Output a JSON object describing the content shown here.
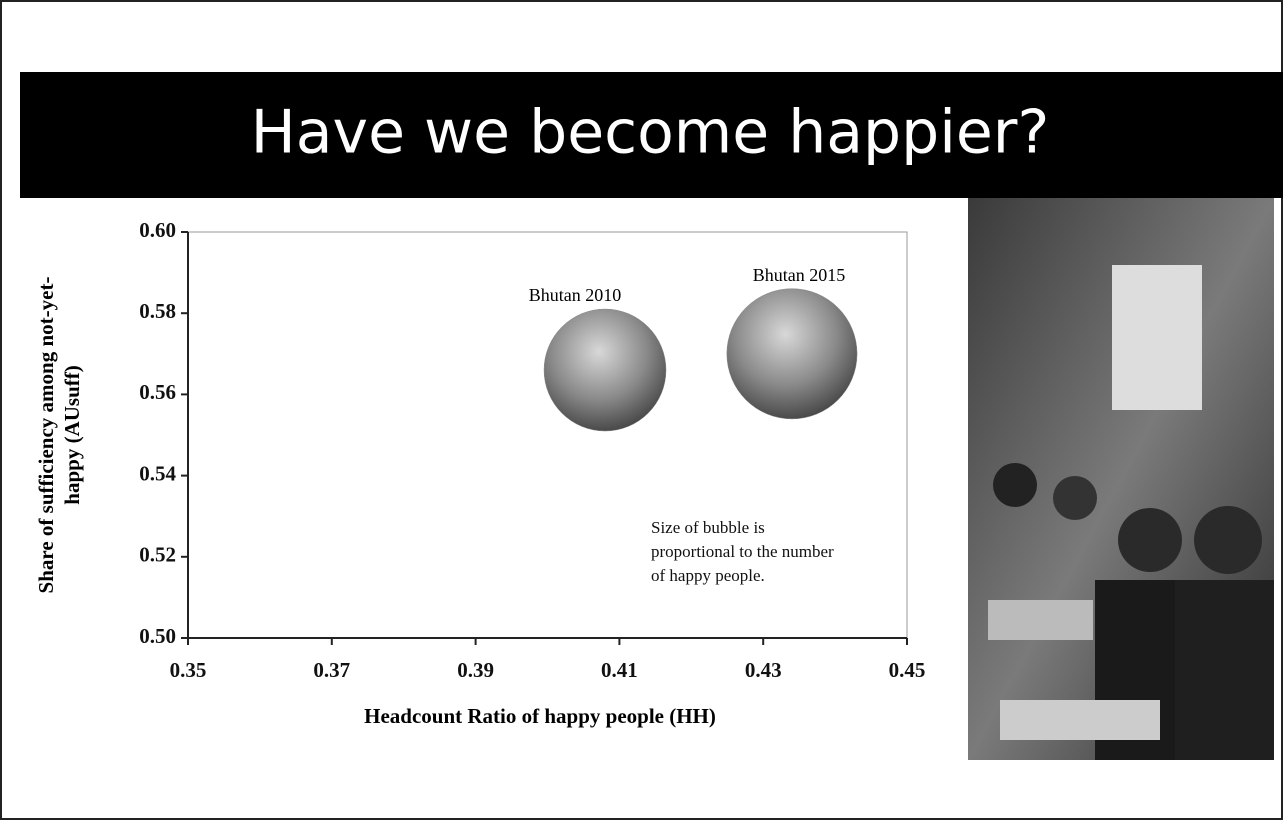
{
  "chart_data": {
    "type": "bubble",
    "title": "Have we become happier?",
    "xlabel": "Headcount Ratio of happy people (HH)",
    "ylabel": [
      "Share of sufficiency among not-yet-",
      "happy (AUsuff)"
    ],
    "series": [
      {
        "labels": [
          "Bhutan 2010",
          "Bhutan 2015"
        ],
        "x": [
          0.408,
          0.434
        ],
        "y": [
          0.566,
          0.57
        ],
        "sizes": [
          100,
          114
        ],
        "color": "#8a8a8a"
      }
    ],
    "annotation": "Size of bubble is proportional to the number of happy people.",
    "xlim": [
      0.35,
      0.45
    ],
    "ylim": [
      0.5,
      0.6
    ],
    "xticks": [
      0.35,
      0.37,
      0.39,
      0.41,
      0.43,
      0.45
    ],
    "yticks": [
      {
        "value": 0.5,
        "label": "0.50"
      },
      0.52,
      0.54,
      0.56,
      0.58,
      {
        "value": 0.6,
        "label": "0.60"
      }
    ]
  }
}
